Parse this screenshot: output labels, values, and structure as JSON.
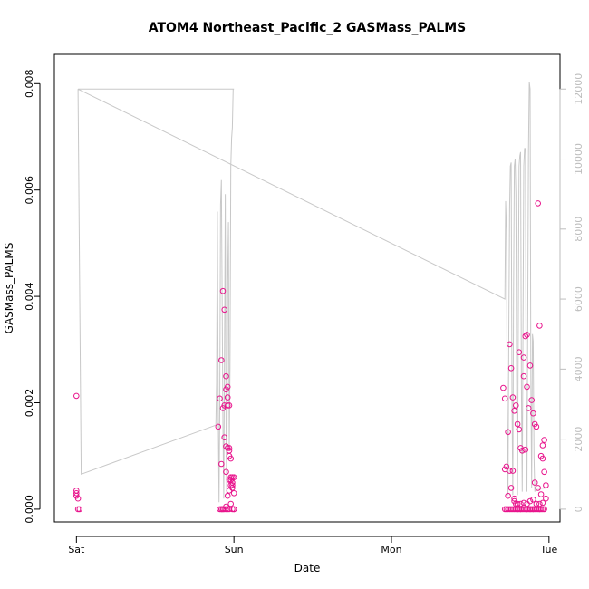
{
  "chart_data": {
    "type": "scatter",
    "title": "ATOM4 Northeast_Pacific_2 GASMass_PALMS",
    "xlabel": "Date",
    "ylabel": "GASMass_PALMS",
    "x_ticks": [
      "Sat",
      "Sun",
      "Mon",
      "Tue"
    ],
    "x_range_days": [
      -0.14,
      3.07
    ],
    "y_range": [
      -0.00024,
      0.00855
    ],
    "y_ticks": [
      "0.000",
      "0.002",
      "0.004",
      "0.006",
      "0.008"
    ],
    "y2_range": [
      -365,
      12990
    ],
    "y2_ticks": [
      "0",
      "2000",
      "4000",
      "6000",
      "8000",
      "10000",
      "12000"
    ],
    "grid": false,
    "colors": {
      "points": "#e8148c",
      "altitude_line": "#c8c8c8",
      "right_axis": "#bdbdbd"
    },
    "series": [
      {
        "name": "",
        "kind": "points",
        "x": [
          0.0,
          0.0,
          0.0,
          0.01,
          0.01,
          0.02,
          0.0,
          0.9,
          0.91,
          0.92,
          0.93,
          0.94,
          0.95,
          0.95,
          0.96,
          0.96,
          0.97,
          0.97,
          0.98,
          0.98,
          0.99,
          0.99,
          0.99,
          1.0,
          1.0,
          1.0,
          0.91,
          0.92,
          0.93,
          0.94,
          0.95,
          0.96,
          0.97,
          0.98,
          0.99,
          1.0,
          0.92,
          0.93,
          0.94,
          0.95,
          0.96,
          0.97,
          0.98,
          0.99,
          0.94,
          0.95,
          0.96,
          0.97,
          0.97,
          0.98,
          0.96,
          0.97,
          0.95,
          0.98,
          0.93,
          0.92,
          2.71,
          2.72,
          2.73,
          2.74,
          2.75,
          2.76,
          2.77,
          2.78,
          2.79,
          2.8,
          2.81,
          2.82,
          2.83,
          2.84,
          2.85,
          2.86,
          2.87,
          2.88,
          2.89,
          2.9,
          2.91,
          2.92,
          2.93,
          2.94,
          2.95,
          2.96,
          2.97,
          2.98,
          2.72,
          2.74,
          2.76,
          2.78,
          2.8,
          2.82,
          2.84,
          2.86,
          2.88,
          2.9,
          2.92,
          2.94,
          2.96,
          2.75,
          2.77,
          2.79,
          2.81,
          2.83,
          2.85,
          2.87,
          2.89,
          2.91,
          2.93,
          2.95,
          2.97,
          2.73,
          2.76,
          2.78,
          2.8,
          2.82,
          2.84,
          2.86,
          2.88,
          2.9,
          2.92,
          2.94,
          2.96,
          2.96,
          2.97,
          2.85,
          2.86,
          2.81,
          2.84,
          2.75,
          2.77,
          2.79,
          2.91,
          2.93,
          2.95,
          2.98,
          2.72,
          2.74,
          2.78,
          2.8,
          2.82,
          2.86,
          2.88,
          2.9,
          2.94
        ],
        "y": [
          0.00035,
          0.0003,
          0.00025,
          0.0002,
          0.0,
          0.0,
          0.00213,
          0.00155,
          0.00208,
          0.0028,
          0.0019,
          0.00375,
          0.0025,
          0.00225,
          0.0023,
          0.0021,
          0.00195,
          0.00115,
          0.0006,
          0.00055,
          0.0005,
          0.00045,
          0.0004,
          0.0003,
          0.0,
          0.0006,
          0.0,
          0.00085,
          0.0041,
          0.00135,
          0.0007,
          0.00115,
          0.001,
          0.00095,
          0.0006,
          0.0,
          0.0,
          0.0,
          0.0,
          5e-05,
          0.0,
          0.0,
          0.00055,
          0.0,
          0.00195,
          0.0,
          0.00025,
          0.00035,
          0.00055,
          0.00045,
          0.00195,
          0.0011,
          0.00118,
          0.0001,
          0.0,
          0.0,
          0.00228,
          0.00208,
          0.0008,
          0.00145,
          0.0031,
          0.00265,
          0.0021,
          0.00185,
          0.00195,
          0.0016,
          0.0015,
          0.00115,
          0.0011,
          0.0025,
          0.00325,
          0.0023,
          0.0019,
          0.0027,
          0.00205,
          0.0018,
          0.0016,
          0.00155,
          0.00575,
          0.00345,
          0.001,
          0.00095,
          0.0007,
          0.0002,
          0.00075,
          0.00025,
          0.0004,
          0.00015,
          0.0001,
          0.0001,
          0.00012,
          0.0001,
          0.00015,
          0.00018,
          0.0001,
          0.0001,
          0.00012,
          0.0,
          0.0,
          0.0,
          0.0,
          0.0,
          0.0,
          0.0,
          0.0,
          0.0,
          0.0,
          0.0,
          0.0,
          0.0,
          0.0,
          0.0,
          0.0,
          0.0,
          0.0,
          0.0,
          0.0,
          0.0,
          0.0,
          0.0,
          0.0,
          0.0012,
          0.0013,
          0.00112,
          0.00328,
          0.00295,
          0.00285,
          0.00072,
          0.00072,
          0.0001,
          0.0005,
          0.0004,
          0.00028,
          0.00045,
          0.0,
          0.0,
          0.0002,
          0.0,
          0.0,
          0.0,
          0.0,
          0.0,
          0.0
        ]
      },
      {
        "name": "",
        "kind": "line",
        "x": [
          0.01,
          0.01,
          0.03,
          0.885,
          0.89,
          0.895,
          0.9,
          0.905,
          0.91,
          0.915,
          0.92,
          0.93,
          0.935,
          0.94,
          0.945,
          0.95,
          0.955,
          0.96,
          0.965,
          0.97,
          0.975,
          0.98,
          0.985,
          0.99,
          0.995,
          1.0,
          0.995,
          0.01,
          2.72,
          2.725,
          2.73,
          2.735,
          2.74,
          2.745,
          2.75,
          2.755,
          2.76,
          2.765,
          2.77,
          2.775,
          2.78,
          2.785,
          2.79,
          2.795,
          2.8,
          2.805,
          2.81,
          2.815,
          2.82,
          2.825,
          2.83,
          2.835,
          2.84,
          2.845,
          2.85,
          2.855,
          2.86,
          2.865,
          2.87,
          2.875,
          2.88,
          2.885,
          2.89,
          2.895,
          2.9,
          2.905,
          2.91,
          2.915,
          2.92,
          2.925,
          2.93,
          2.935,
          2.94,
          2.945,
          2.95,
          2.955,
          2.96,
          2.965,
          2.97,
          2.975,
          2.98
        ],
        "y": [
          12000,
          12000,
          1000,
          2400,
          3600,
          8500,
          3000,
          200,
          2800,
          8700,
          9400,
          2500,
          300,
          4200,
          9000,
          2000,
          300,
          6500,
          8200,
          1800,
          4000,
          9800,
          10600,
          10900,
          12000,
          12000,
          12000,
          12000,
          6000,
          8800,
          8000,
          2500,
          400,
          5000,
          8600,
          9800,
          9900,
          3200,
          400,
          6000,
          9800,
          10000,
          9000,
          3200,
          400,
          5000,
          9800,
          10100,
          10200,
          3500,
          500,
          5000,
          9800,
          10300,
          10300,
          3600,
          500,
          5500,
          10200,
          12200,
          12000,
          3800,
          600,
          5000,
          4800,
          1500,
          500,
          600,
          600,
          600,
          600,
          600,
          600,
          600,
          600,
          600,
          600,
          600,
          600,
          600,
          600
        ]
      }
    ]
  }
}
